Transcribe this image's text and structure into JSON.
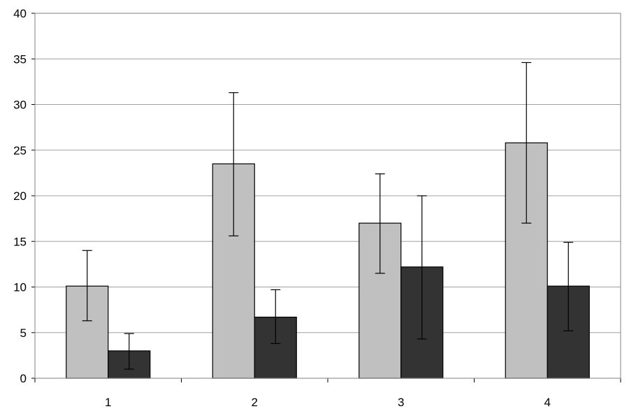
{
  "chart_data": {
    "type": "bar",
    "title": "",
    "xlabel": "",
    "ylabel": "",
    "categories": [
      "1",
      "2",
      "3",
      "4"
    ],
    "ylim": [
      0,
      40
    ],
    "yticks": [
      0,
      5,
      10,
      15,
      20,
      25,
      30,
      35,
      40
    ],
    "grid": true,
    "series": [
      {
        "values": [
          10.1,
          23.5,
          17.0,
          25.8
        ],
        "err_low": [
          6.3,
          15.6,
          11.5,
          17.0
        ],
        "err_high": [
          14.0,
          31.3,
          22.4,
          34.6
        ],
        "color": "#c0c0c0"
      },
      {
        "values": [
          3.0,
          6.7,
          12.2,
          10.1
        ],
        "err_low": [
          1.0,
          3.8,
          4.3,
          5.2
        ],
        "err_high": [
          4.9,
          9.7,
          20.0,
          14.9
        ],
        "color": "#333333"
      }
    ]
  }
}
